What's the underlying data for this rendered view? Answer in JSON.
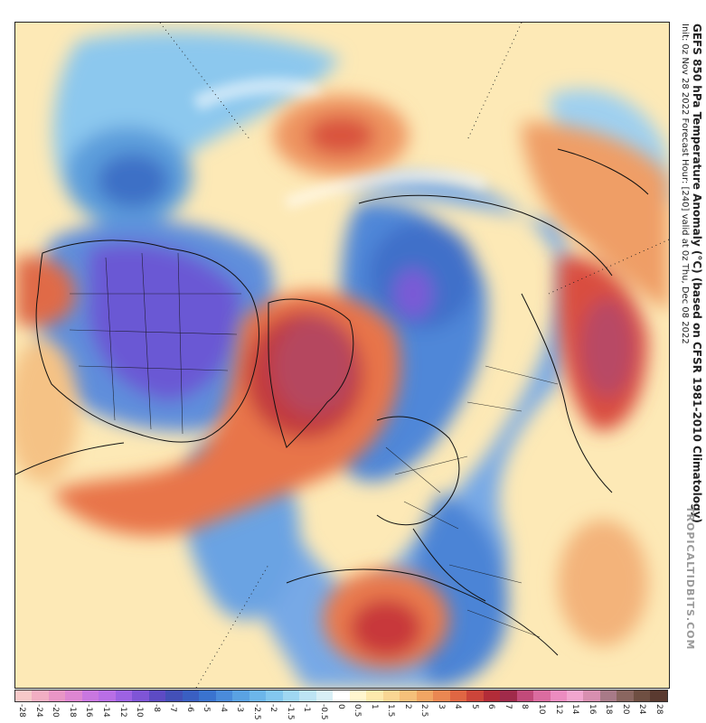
{
  "title": {
    "main": "GEFS 850 hPa Temperature Anomaly (°C) (based on CFSR 1981-2010 Climatology)",
    "sub": "Init: 0z Nov 28 2022   Forecast Hour: [240]   valid at 0z Thu, Dec 08 2022"
  },
  "watermark": "TROPICALTIDBITS.COM",
  "legend": {
    "ticks": [
      "-28",
      "-24",
      "-20",
      "-18",
      "-16",
      "-14",
      "-12",
      "-10",
      "-8",
      "-7",
      "-6",
      "-5",
      "-4",
      "-3",
      "-2.5",
      "-2",
      "-1.5",
      "-1",
      "-0.5",
      "0",
      "0.5",
      "1",
      "1.5",
      "2",
      "2.5",
      "3",
      "4",
      "5",
      "6",
      "7",
      "8",
      "10",
      "12",
      "14",
      "16",
      "18",
      "20",
      "24",
      "28"
    ],
    "colors": [
      "#f7c9c9",
      "#f2aec3",
      "#e996c6",
      "#de86d2",
      "#c977e0",
      "#b96ee6",
      "#9d62e3",
      "#7f55d6",
      "#5d4bc4",
      "#4350b8",
      "#3a5fc2",
      "#3a73cf",
      "#4a8bdb",
      "#5aa2e3",
      "#6cb6ea",
      "#83c7ef",
      "#9fd7f2",
      "#bde4f4",
      "#d8eff6",
      "#ffffff",
      "#fff6cf",
      "#fde9ad",
      "#f9d693",
      "#f5c07a",
      "#f1a563",
      "#ea8752",
      "#e06643",
      "#cc453a",
      "#b22c38",
      "#a02a4a",
      "#c24a7a",
      "#db6ca0",
      "#ec8cc0",
      "#f2a6cf",
      "#d88fb0",
      "#a87a88",
      "#8a6660",
      "#6f4f42",
      "#5a3a30"
    ]
  },
  "map": {
    "regions": [
      {
        "name": "north-america-cold-core",
        "anomaly": -8
      },
      {
        "name": "greenland-warm-core",
        "anomaly": 7
      },
      {
        "name": "siberia-warm-core",
        "anomaly": 6
      },
      {
        "name": "north-africa-warm-core",
        "anomaly": 5
      },
      {
        "name": "pacific-warm-core",
        "anomaly": 5
      },
      {
        "name": "west-pacific-cold-core",
        "anomaly": -5
      },
      {
        "name": "arctic-cold-core",
        "anomaly": -6
      },
      {
        "name": "europe-cold-band",
        "anomaly": -3
      }
    ]
  }
}
